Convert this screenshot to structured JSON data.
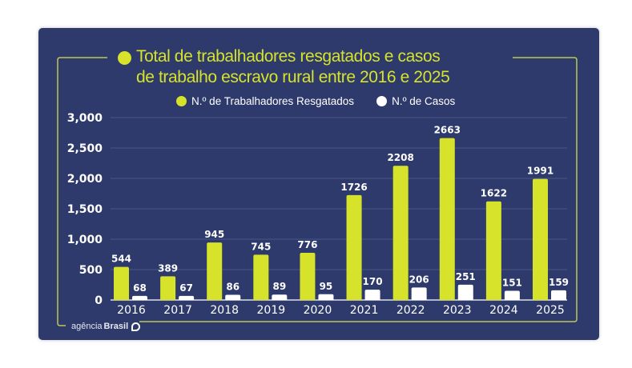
{
  "chart_data": {
    "type": "bar",
    "title": "Total de trabalhadores resgatados e casos de trabalho escravo rural entre 2016 e 2025",
    "categories": [
      "2016",
      "2017",
      "2018",
      "2019",
      "2020",
      "2021",
      "2022",
      "2023",
      "2024",
      "2025"
    ],
    "series": [
      {
        "name": "N.º de Trabalhadores Resgatados",
        "color": "#d6e32a",
        "values": [
          544,
          389,
          945,
          745,
          776,
          1726,
          2208,
          2663,
          1622,
          1991
        ]
      },
      {
        "name": "N.º de Casos",
        "color": "#ffffff",
        "values": [
          68,
          67,
          86,
          89,
          95,
          170,
          206,
          251,
          151,
          159
        ]
      }
    ],
    "xlabel": "",
    "ylabel": "",
    "ylim": [
      0,
      3000
    ],
    "yticks": [
      0,
      500,
      1000,
      1500,
      2000,
      2500,
      3000
    ],
    "ytick_labels": [
      "0",
      "500",
      "1,000",
      "1,500",
      "2,000",
      "2,500",
      "3,000"
    ],
    "grid": true,
    "legend_position": "top-center",
    "data_labels": true
  },
  "colors": {
    "background": "#2e3a6b",
    "accent": "#d6e32a",
    "frame": "#b9c85a",
    "grid": "#4a5688",
    "text": "#ffffff"
  },
  "title_lines": [
    "Total de trabalhadores resgatados e casos",
    "de trabalho escravo rural entre 2016 e 2025"
  ],
  "logo": {
    "prefix": "agência",
    "bold": "Brasil"
  }
}
